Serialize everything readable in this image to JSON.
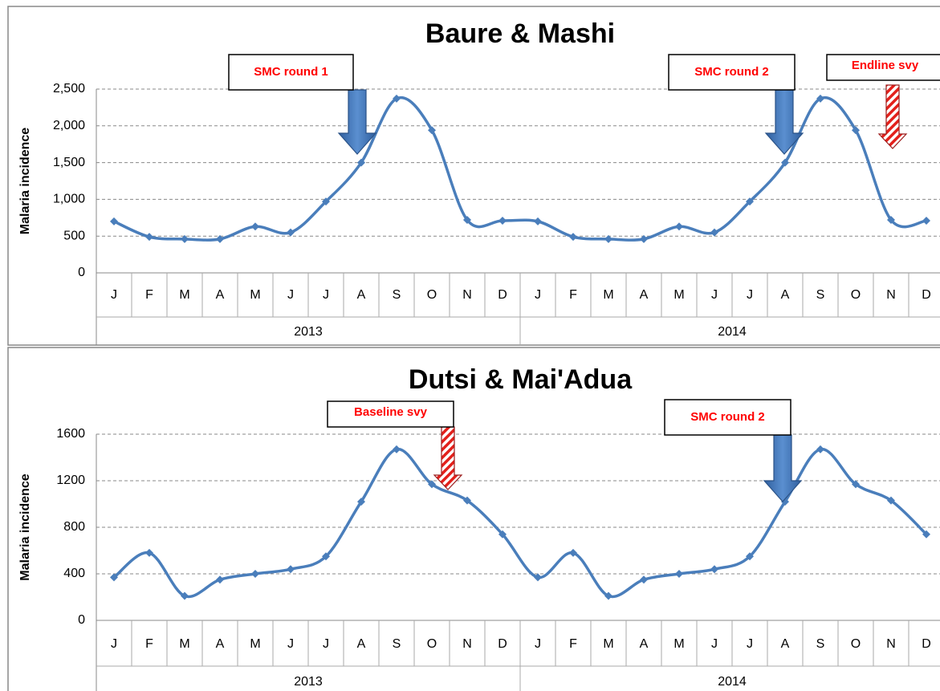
{
  "chart_data": [
    {
      "type": "line",
      "title": "Baure & Mashi",
      "y_label": "Malaria incidence",
      "categories": [
        "J",
        "F",
        "M",
        "A",
        "M",
        "J",
        "J",
        "A",
        "S",
        "O",
        "N",
        "D",
        "J",
        "F",
        "M",
        "A",
        "M",
        "J",
        "J",
        "A",
        "S",
        "O",
        "N",
        "D"
      ],
      "year_groups": [
        "2013",
        "2014"
      ],
      "values": [
        700,
        490,
        460,
        460,
        630,
        550,
        970,
        1500,
        2370,
        1940,
        720,
        710,
        700,
        490,
        460,
        460,
        630,
        550,
        970,
        1500,
        2370,
        1940,
        720,
        710
      ],
      "color": "#4a7ebb",
      "ylim": [
        0,
        2500
      ],
      "yticks": [
        0,
        500,
        {
          "value": 1000,
          "label": "1,000"
        },
        {
          "value": 1500,
          "label": "1,500"
        },
        {
          "value": 2000,
          "label": "2,000"
        },
        {
          "value": 2500,
          "label": "2,500"
        }
      ],
      "grid": true,
      "annotations": [
        "SMC round 1",
        "SMC round 2",
        "Endline svy"
      ]
    },
    {
      "type": "line",
      "title": "Dutsi & Mai'Adua",
      "y_label": "Malaria incidence",
      "categories": [
        "J",
        "F",
        "M",
        "A",
        "M",
        "J",
        "J",
        "A",
        "S",
        "O",
        "N",
        "D",
        "J",
        "F",
        "M",
        "A",
        "M",
        "J",
        "J",
        "A",
        "S",
        "O",
        "N",
        "D"
      ],
      "year_groups": [
        "2013",
        "2014"
      ],
      "values": [
        370,
        580,
        210,
        350,
        400,
        440,
        550,
        1020,
        1470,
        1170,
        1030,
        740,
        370,
        580,
        210,
        350,
        400,
        440,
        550,
        1020,
        1470,
        1170,
        1030,
        740
      ],
      "color": "#4a7ebb",
      "ylim": [
        0,
        1600
      ],
      "yticks": [
        0,
        400,
        800,
        1200,
        1600
      ],
      "grid": true,
      "annotations": [
        "Baseline svy",
        "SMC round 2"
      ]
    }
  ]
}
